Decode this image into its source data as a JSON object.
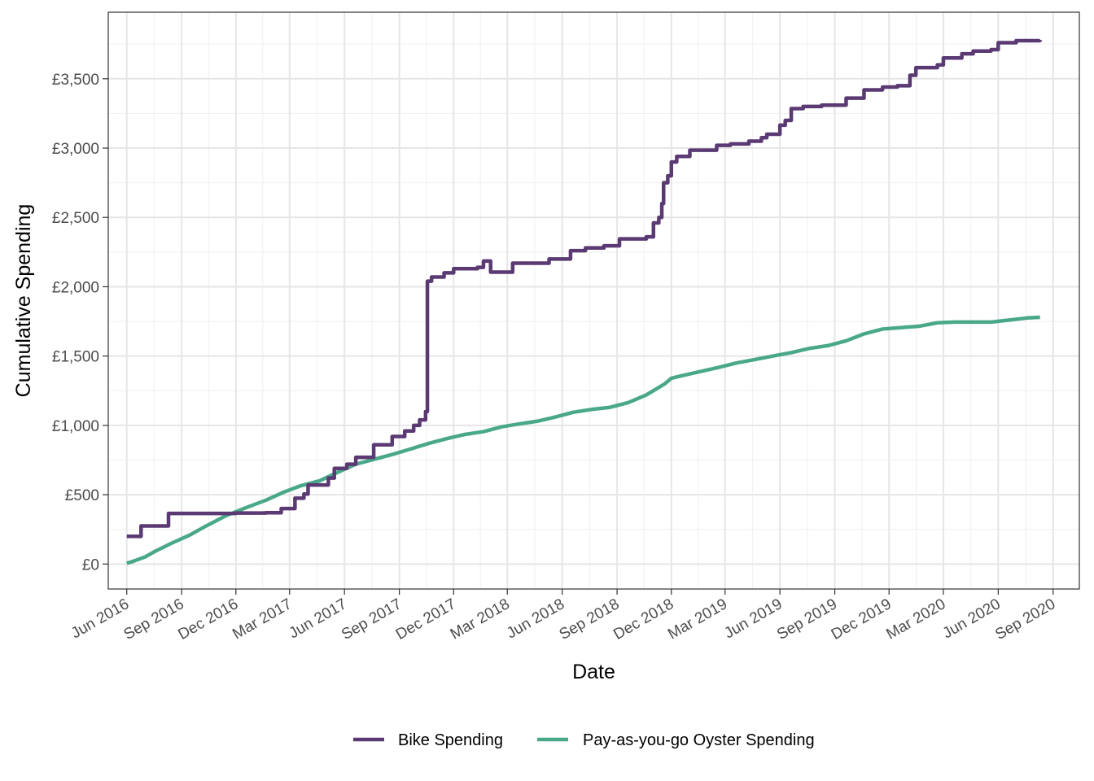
{
  "chart_data": {
    "type": "line",
    "title": "",
    "xlabel": "Date",
    "ylabel": "Cumulative Spending",
    "x_type": "date",
    "xlim": [
      "2016-05-01",
      "2020-10-15"
    ],
    "ylim": [
      -180,
      3980
    ],
    "x_ticks": [
      {
        "date": "2016-06-01",
        "label": "Jun 2016"
      },
      {
        "date": "2016-09-01",
        "label": "Sep 2016"
      },
      {
        "date": "2016-12-01",
        "label": "Dec 2016"
      },
      {
        "date": "2017-03-01",
        "label": "Mar 2017"
      },
      {
        "date": "2017-06-01",
        "label": "Jun 2017"
      },
      {
        "date": "2017-09-01",
        "label": "Sep 2017"
      },
      {
        "date": "2017-12-01",
        "label": "Dec 2017"
      },
      {
        "date": "2018-03-01",
        "label": "Mar 2018"
      },
      {
        "date": "2018-06-01",
        "label": "Jun 2018"
      },
      {
        "date": "2018-09-01",
        "label": "Sep 2018"
      },
      {
        "date": "2018-12-01",
        "label": "Dec 2018"
      },
      {
        "date": "2019-03-01",
        "label": "Mar 2019"
      },
      {
        "date": "2019-06-01",
        "label": "Jun 2019"
      },
      {
        "date": "2019-09-01",
        "label": "Sep 2019"
      },
      {
        "date": "2019-12-01",
        "label": "Dec 2019"
      },
      {
        "date": "2020-03-01",
        "label": "Mar 2020"
      },
      {
        "date": "2020-06-01",
        "label": "Jun 2020"
      },
      {
        "date": "2020-09-01",
        "label": "Sep 2020"
      }
    ],
    "y_ticks": [
      {
        "value": 0,
        "label": "£0"
      },
      {
        "value": 500,
        "label": "£500"
      },
      {
        "value": 1000,
        "label": "£1,000"
      },
      {
        "value": 1500,
        "label": "£1,500"
      },
      {
        "value": 2000,
        "label": "£2,000"
      },
      {
        "value": 2500,
        "label": "£2,500"
      },
      {
        "value": 3000,
        "label": "£3,000"
      },
      {
        "value": 3500,
        "label": "£3,500"
      }
    ],
    "grid": true,
    "legend_position": "bottom",
    "series": [
      {
        "name": "Bike Spending",
        "color": "#5b3a73",
        "step": true,
        "points": [
          [
            "2016-06-01",
            200
          ],
          [
            "2016-06-25",
            275
          ],
          [
            "2016-08-10",
            365
          ],
          [
            "2016-10-10",
            365
          ],
          [
            "2016-12-01",
            368
          ],
          [
            "2017-01-20",
            370
          ],
          [
            "2017-02-15",
            400
          ],
          [
            "2017-03-10",
            475
          ],
          [
            "2017-03-25",
            505
          ],
          [
            "2017-04-01",
            570
          ],
          [
            "2017-05-05",
            620
          ],
          [
            "2017-05-15",
            690
          ],
          [
            "2017-06-05",
            720
          ],
          [
            "2017-06-20",
            770
          ],
          [
            "2017-07-20",
            860
          ],
          [
            "2017-08-20",
            920
          ],
          [
            "2017-09-10",
            960
          ],
          [
            "2017-09-25",
            1000
          ],
          [
            "2017-10-05",
            1040
          ],
          [
            "2017-10-15",
            1100
          ],
          [
            "2017-10-18",
            2040
          ],
          [
            "2017-10-25",
            2070
          ],
          [
            "2017-11-15",
            2100
          ],
          [
            "2017-12-01",
            2130
          ],
          [
            "2018-01-10",
            2140
          ],
          [
            "2018-01-20",
            2185
          ],
          [
            "2018-02-01",
            2105
          ],
          [
            "2018-03-10",
            2170
          ],
          [
            "2018-05-10",
            2200
          ],
          [
            "2018-06-15",
            2260
          ],
          [
            "2018-07-10",
            2280
          ],
          [
            "2018-08-10",
            2295
          ],
          [
            "2018-09-05",
            2345
          ],
          [
            "2018-10-20",
            2360
          ],
          [
            "2018-11-01",
            2460
          ],
          [
            "2018-11-10",
            2500
          ],
          [
            "2018-11-15",
            2600
          ],
          [
            "2018-11-18",
            2750
          ],
          [
            "2018-11-25",
            2800
          ],
          [
            "2018-12-01",
            2900
          ],
          [
            "2018-12-10",
            2940
          ],
          [
            "2019-01-01",
            2985
          ],
          [
            "2019-02-15",
            3020
          ],
          [
            "2019-03-10",
            3030
          ],
          [
            "2019-04-10",
            3050
          ],
          [
            "2019-05-01",
            3075
          ],
          [
            "2019-05-10",
            3100
          ],
          [
            "2019-06-01",
            3165
          ],
          [
            "2019-06-10",
            3200
          ],
          [
            "2019-06-20",
            3285
          ],
          [
            "2019-07-10",
            3300
          ],
          [
            "2019-08-10",
            3310
          ],
          [
            "2019-09-20",
            3360
          ],
          [
            "2019-10-20",
            3420
          ],
          [
            "2019-11-20",
            3440
          ],
          [
            "2019-12-15",
            3450
          ],
          [
            "2020-01-05",
            3525
          ],
          [
            "2020-01-15",
            3580
          ],
          [
            "2020-02-20",
            3600
          ],
          [
            "2020-03-01",
            3650
          ],
          [
            "2020-04-01",
            3680
          ],
          [
            "2020-04-20",
            3700
          ],
          [
            "2020-05-20",
            3710
          ],
          [
            "2020-06-01",
            3760
          ],
          [
            "2020-07-01",
            3775
          ],
          [
            "2020-08-10",
            3780
          ]
        ]
      },
      {
        "name": "Pay-as-you-go Oyster Spending",
        "color": "#4aa88a",
        "step": false,
        "points": [
          [
            "2016-06-01",
            5
          ],
          [
            "2016-06-15",
            25
          ],
          [
            "2016-07-01",
            50
          ],
          [
            "2016-07-20",
            95
          ],
          [
            "2016-08-15",
            150
          ],
          [
            "2016-09-15",
            210
          ],
          [
            "2016-10-10",
            270
          ],
          [
            "2016-11-15",
            350
          ],
          [
            "2016-12-20",
            410
          ],
          [
            "2017-01-20",
            460
          ],
          [
            "2017-02-20",
            520
          ],
          [
            "2017-03-20",
            565
          ],
          [
            "2017-04-20",
            600
          ],
          [
            "2017-05-20",
            660
          ],
          [
            "2017-06-20",
            720
          ],
          [
            "2017-07-20",
            755
          ],
          [
            "2017-08-20",
            790
          ],
          [
            "2017-09-20",
            830
          ],
          [
            "2017-10-20",
            870
          ],
          [
            "2017-11-20",
            905
          ],
          [
            "2017-12-20",
            935
          ],
          [
            "2018-01-20",
            955
          ],
          [
            "2018-02-20",
            990
          ],
          [
            "2018-03-20",
            1010
          ],
          [
            "2018-04-20",
            1030
          ],
          [
            "2018-05-20",
            1060
          ],
          [
            "2018-06-20",
            1095
          ],
          [
            "2018-07-20",
            1115
          ],
          [
            "2018-08-20",
            1130
          ],
          [
            "2018-09-20",
            1165
          ],
          [
            "2018-10-20",
            1220
          ],
          [
            "2018-11-20",
            1300
          ],
          [
            "2018-12-01",
            1340
          ],
          [
            "2018-12-20",
            1360
          ],
          [
            "2019-01-20",
            1390
          ],
          [
            "2019-02-20",
            1420
          ],
          [
            "2019-03-20",
            1450
          ],
          [
            "2019-04-20",
            1475
          ],
          [
            "2019-05-20",
            1500
          ],
          [
            "2019-06-20",
            1525
          ],
          [
            "2019-07-20",
            1555
          ],
          [
            "2019-08-20",
            1575
          ],
          [
            "2019-09-20",
            1610
          ],
          [
            "2019-10-20",
            1660
          ],
          [
            "2019-11-20",
            1695
          ],
          [
            "2019-12-20",
            1705
          ],
          [
            "2020-01-20",
            1715
          ],
          [
            "2020-02-20",
            1740
          ],
          [
            "2020-03-20",
            1745
          ],
          [
            "2020-04-20",
            1745
          ],
          [
            "2020-05-20",
            1745
          ],
          [
            "2020-06-20",
            1760
          ],
          [
            "2020-07-20",
            1775
          ],
          [
            "2020-08-10",
            1780
          ]
        ]
      }
    ]
  }
}
